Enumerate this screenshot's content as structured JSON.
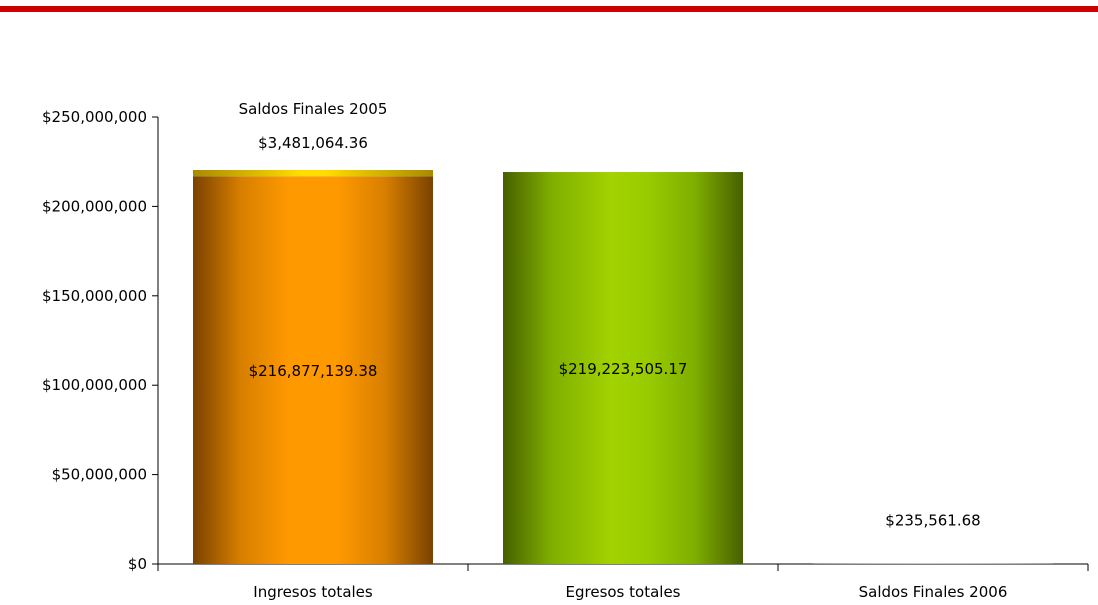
{
  "theme": {
    "top_stripe_color": "#cc0000"
  },
  "chart_data": {
    "type": "bar",
    "stacked": true,
    "categories": [
      "Ingresos totales",
      "Egresos totales",
      "Saldos Finales 2006"
    ],
    "series": [
      {
        "name": "Saldos Finales 2005",
        "values": [
          3481064.36,
          null,
          null
        ],
        "labels": [
          "$3,481,064.36",
          "",
          ""
        ],
        "color": "#ffd700"
      },
      {
        "name": "",
        "values": [
          216877139.38,
          219223505.17,
          235561.68
        ],
        "labels": [
          "$216,877,139.38",
          "$219,223,505.17",
          "$235,561.68"
        ],
        "colors": [
          "#ff9900",
          "#99cc00",
          "#99cc00"
        ]
      }
    ],
    "annotations": [
      "Saldos Finales 2005"
    ],
    "ylim": [
      0,
      250000000
    ],
    "yticks": [
      0,
      50000000,
      100000000,
      150000000,
      200000000,
      250000000
    ],
    "ytick_labels": [
      "$0",
      "$50,000,000",
      "$100,000,000",
      "$150,000,000",
      "$200,000,000",
      "$250,000,000"
    ],
    "grid": false,
    "legend": "none",
    "title": "",
    "xlabel": "",
    "ylabel": ""
  }
}
